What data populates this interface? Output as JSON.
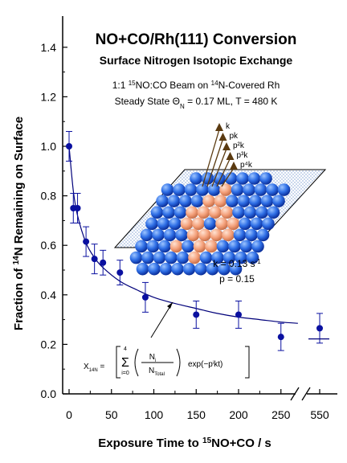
{
  "chart_data": {
    "type": "scatter",
    "title": "NO+CO/Rh(111) Conversion",
    "subtitle": "Surface Nitrogen Isotopic Exchange",
    "xlabel": "Exposure Time to ¹⁵NO+CO / s",
    "ylabel": "Fraction of ¹⁴N Remaining on Surface",
    "x_ticks": [
      "0",
      "50",
      "100",
      "150",
      "200",
      "250",
      "550"
    ],
    "y_ticks": [
      "0.0",
      "0.2",
      "0.4",
      "0.6",
      "0.8",
      "1.0",
      "1.2",
      "1.4"
    ],
    "ylim": [
      0,
      1.45
    ],
    "axis_break": "between 250 and 550",
    "grid": false,
    "series": [
      {
        "points": [
          {
            "x": 0,
            "y": 1.0,
            "err": 0.06
          },
          {
            "x": 5,
            "y": 0.75,
            "err": 0.06
          },
          {
            "x": 10,
            "y": 0.75,
            "err": 0.06
          },
          {
            "x": 20,
            "y": 0.615,
            "err": 0.06
          },
          {
            "x": 30,
            "y": 0.545,
            "err": 0.06
          },
          {
            "x": 40,
            "y": 0.53,
            "err": 0.05
          },
          {
            "x": 60,
            "y": 0.49,
            "err": 0.05
          },
          {
            "x": 90,
            "y": 0.39,
            "err": 0.06
          },
          {
            "x": 150,
            "y": 0.32,
            "err": 0.055
          },
          {
            "x": 200,
            "y": 0.32,
            "err": 0.055
          },
          {
            "x": 250,
            "y": 0.23,
            "err": 0.055
          },
          {
            "x": 550,
            "y": 0.265,
            "err": 0.06
          }
        ]
      }
    ],
    "fit_curve": [
      {
        "x": 0,
        "y": 1.0
      },
      {
        "x": 5,
        "y": 0.82
      },
      {
        "x": 10,
        "y": 0.72
      },
      {
        "x": 20,
        "y": 0.61
      },
      {
        "x": 30,
        "y": 0.55
      },
      {
        "x": 40,
        "y": 0.51
      },
      {
        "x": 60,
        "y": 0.455
      },
      {
        "x": 80,
        "y": 0.42
      },
      {
        "x": 100,
        "y": 0.39
      },
      {
        "x": 125,
        "y": 0.365
      },
      {
        "x": 150,
        "y": 0.345
      },
      {
        "x": 175,
        "y": 0.325
      },
      {
        "x": 200,
        "y": 0.31
      },
      {
        "x": 225,
        "y": 0.3
      },
      {
        "x": 250,
        "y": 0.29
      },
      {
        "x": 270,
        "y": 0.285
      }
    ],
    "annotations": {
      "beam_line1": "1:1 ¹⁵NO:CO Beam on ¹⁴N-Covered Rh",
      "beam_line2": "Steady State Θ_N = 0.17 ML, T = 480 K",
      "arrow_labels": [
        "k",
        "pk",
        "p²k",
        "p³k",
        "p⁴k"
      ],
      "k_value": "k = 0.13 s⁻¹",
      "p_value": "p = 0.15",
      "formula_lhs": "X₁₄N =",
      "formula_sum_top": "4",
      "formula_sum_bottom": "i=0",
      "formula_num": "Nᵢ",
      "formula_den": "N_Total",
      "formula_tail": "exp(−pⁱkt)"
    },
    "colors": {
      "points": "#0a10a0",
      "fit": "#00007a",
      "atoms_blue": "#2f6fe6",
      "atoms_salmon": "#f4a07a",
      "arrows": "#5a3a10"
    }
  }
}
